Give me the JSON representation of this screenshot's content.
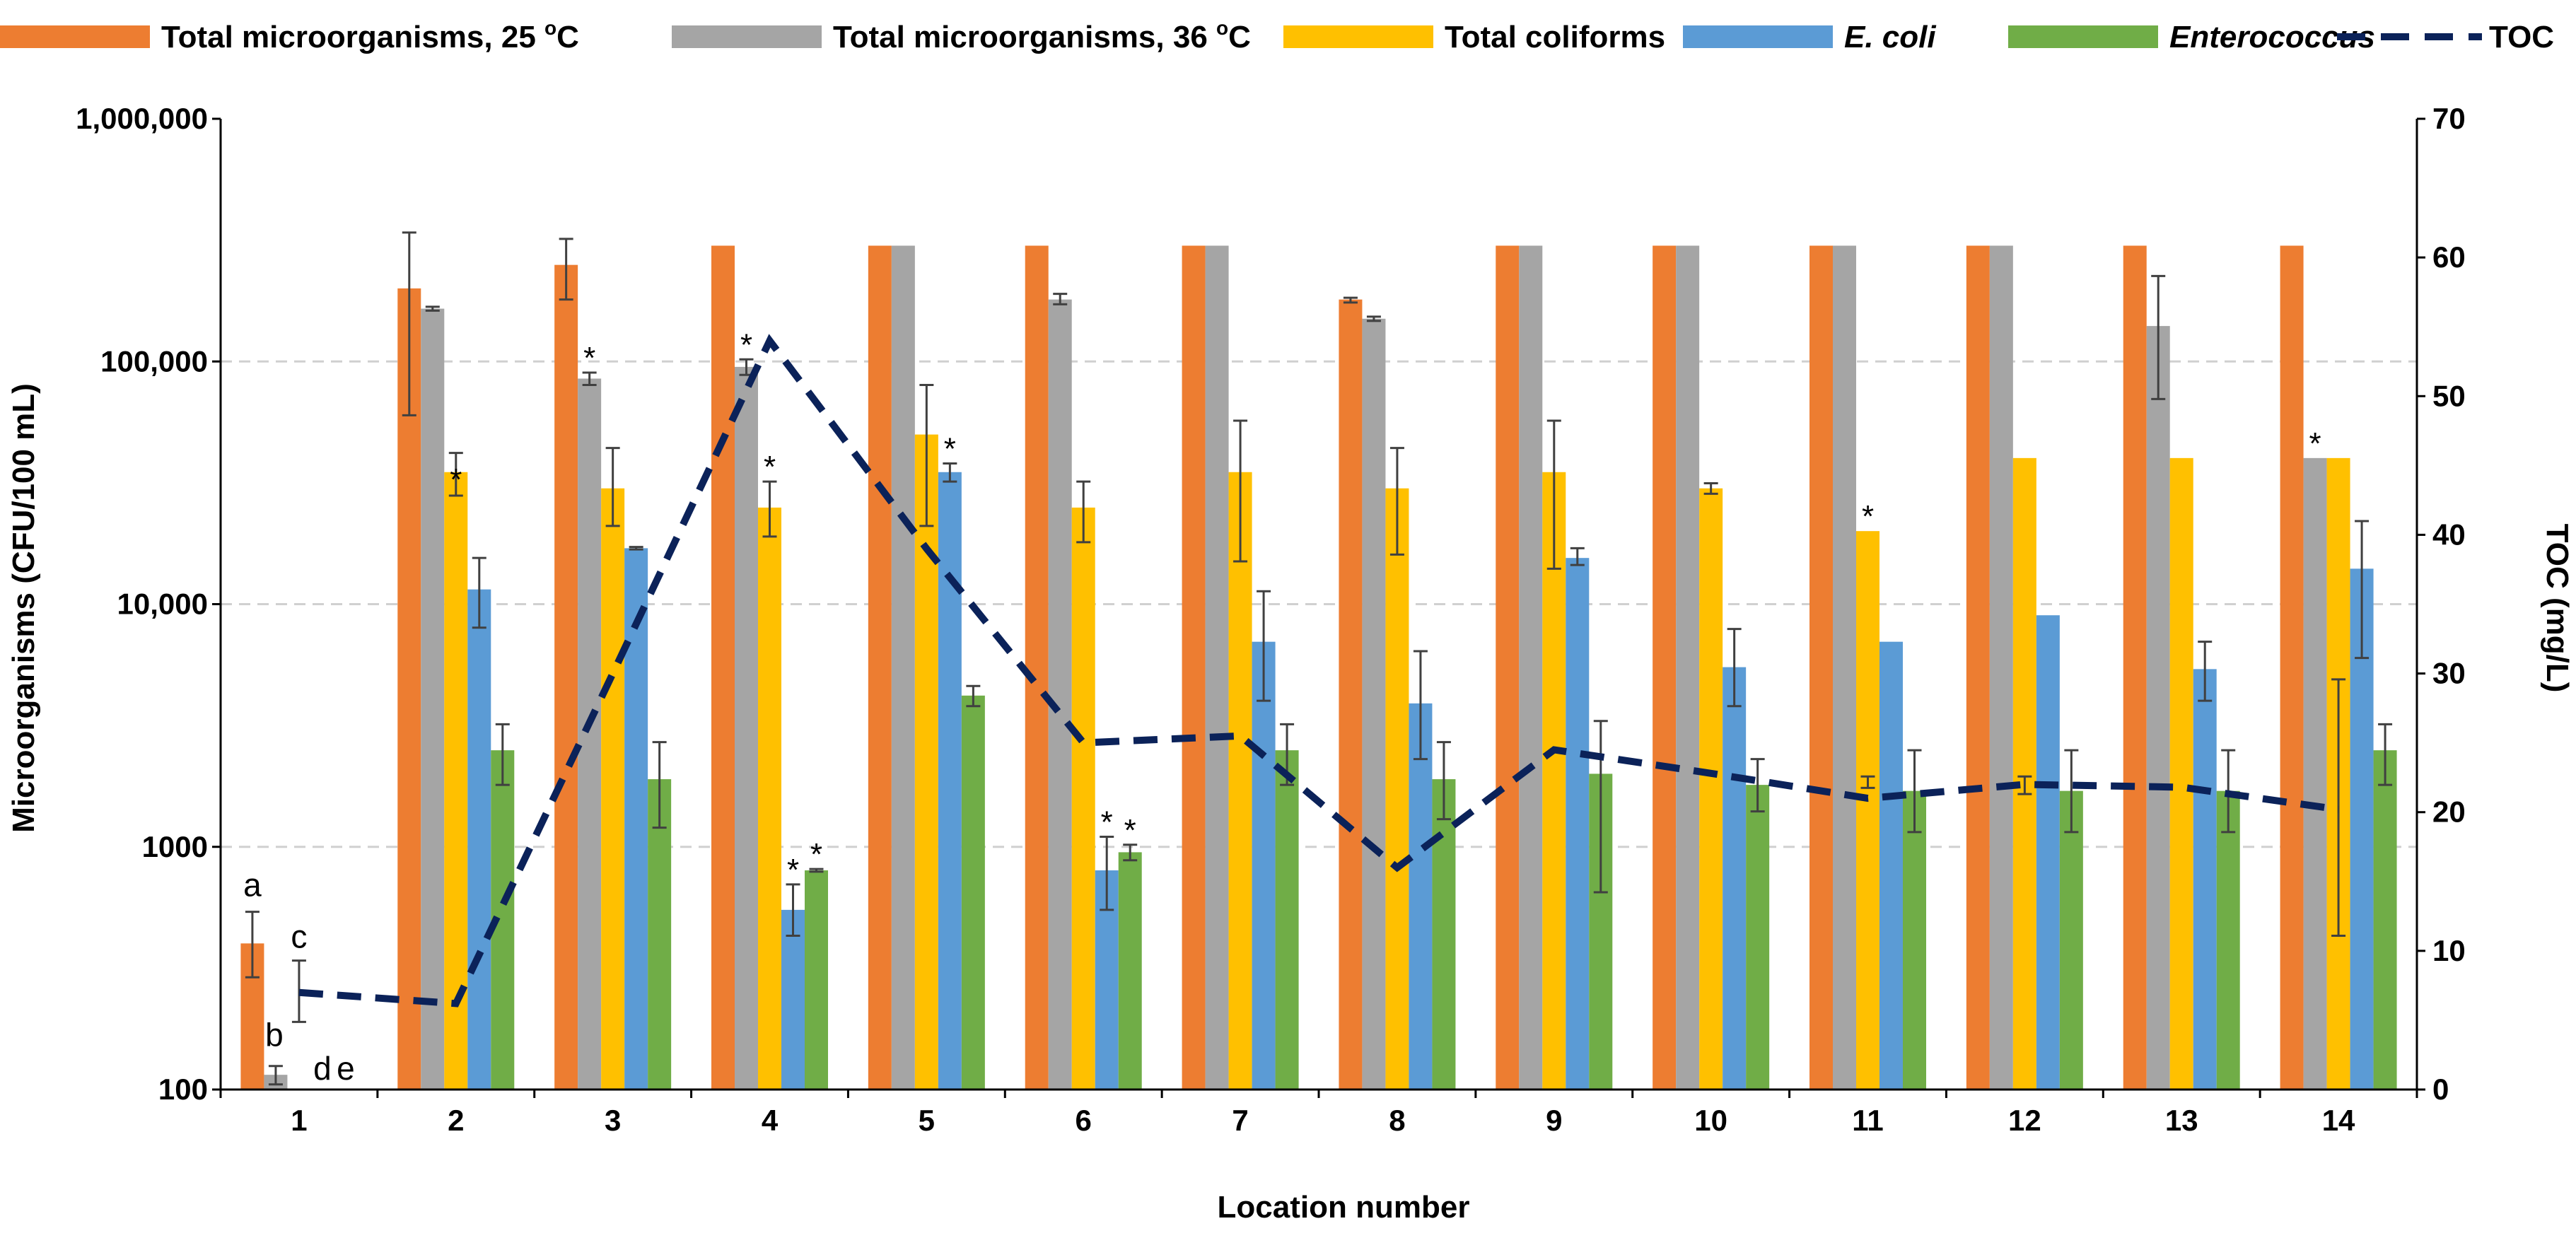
{
  "chart_data": {
    "type": "bar",
    "title": "",
    "xlabel": "Location number",
    "ylabel": "Microorganisms (CFU/100 mL)",
    "y2label": "TOC (mg/L)",
    "yscale": "log",
    "ylim": [
      100,
      1000000
    ],
    "y2lim": [
      0,
      70
    ],
    "y_ticks": [
      {
        "value": 100,
        "label": "100"
      },
      {
        "value": 1000,
        "label": "1000"
      },
      {
        "value": 10000,
        "label": "10,000"
      },
      {
        "value": 100000,
        "label": "100,000"
      },
      {
        "value": 1000000,
        "label": "1,000,000"
      }
    ],
    "y2_ticks": [
      {
        "value": 0,
        "label": "0"
      },
      {
        "value": 10,
        "label": "10"
      },
      {
        "value": 20,
        "label": "20"
      },
      {
        "value": 30,
        "label": "30"
      },
      {
        "value": 40,
        "label": "40"
      },
      {
        "value": 50,
        "label": "50"
      },
      {
        "value": 60,
        "label": "60"
      },
      {
        "value": 70,
        "label": "70"
      }
    ],
    "categories": [
      "1",
      "2",
      "3",
      "4",
      "5",
      "6",
      "7",
      "8",
      "9",
      "10",
      "11",
      "12",
      "13",
      "14"
    ],
    "series": [
      {
        "name": "Total microorganisms, 25 °C",
        "legend_main": "Total microorganisms, 25 ",
        "legend_sup": "o",
        "legend_tail": "C",
        "color": "#ED7D31",
        "values": [
          400,
          200000,
          250000,
          300000,
          300000,
          300000,
          300000,
          180000,
          300000,
          300000,
          300000,
          300000,
          300000,
          300000
        ],
        "err_low": [
          290,
          60000,
          180000,
          null,
          null,
          null,
          null,
          175000,
          null,
          null,
          null,
          null,
          null,
          null
        ],
        "err_high": [
          540,
          340000,
          320000,
          null,
          null,
          null,
          null,
          183000,
          null,
          null,
          null,
          null,
          null,
          null
        ]
      },
      {
        "name": "Total microorganisms, 36 °C",
        "legend_main": "Total microorganisms, 36 ",
        "legend_sup": "o",
        "legend_tail": "C",
        "color": "#A5A5A5",
        "values": [
          115,
          165000,
          85000,
          95000,
          300000,
          180000,
          300000,
          150000,
          300000,
          300000,
          300000,
          300000,
          140000,
          40000
        ],
        "err_low": [
          105,
          162000,
          80000,
          88000,
          null,
          172000,
          null,
          147000,
          null,
          null,
          null,
          null,
          70000,
          null
        ],
        "err_high": [
          125,
          168000,
          90000,
          102000,
          null,
          190000,
          null,
          153000,
          null,
          null,
          null,
          null,
          225000,
          null
        ]
      },
      {
        "name": "Total coliforms",
        "color": "#FFC000",
        "values": [
          null,
          35000,
          30000,
          25000,
          50000,
          25000,
          35000,
          30000,
          35000,
          30000,
          20000,
          40000,
          40000,
          40000
        ],
        "err_low": [
          null,
          28000,
          21000,
          19000,
          21000,
          18000,
          15000,
          16000,
          14000,
          28500,
          null,
          null,
          null,
          null
        ],
        "err_high": [
          null,
          42000,
          44000,
          32000,
          80000,
          32000,
          57000,
          44000,
          57000,
          31500,
          null,
          null,
          null,
          null
        ]
      },
      {
        "name": "E. coli",
        "color": "#5B9BD5",
        "italic": true,
        "values": [
          null,
          11500,
          17000,
          550,
          35000,
          800,
          7000,
          3900,
          15500,
          5500,
          7000,
          9000,
          5400,
          14000
        ],
        "err_low": [
          null,
          8000,
          16800,
          430,
          32000,
          550,
          4000,
          2300,
          14500,
          3800,
          null,
          null,
          4000,
          6000
        ],
        "err_high": [
          null,
          15500,
          17200,
          700,
          38000,
          1100,
          11300,
          6400,
          17000,
          7900,
          null,
          null,
          7000,
          22000
        ]
      },
      {
        "name": "Enterococcus",
        "color": "#70AD47",
        "italic": true,
        "values": [
          null,
          2500,
          1900,
          800,
          4200,
          950,
          2500,
          1900,
          2000,
          1800,
          1700,
          1700,
          1700,
          2500
        ],
        "err_low": [
          null,
          1800,
          1200,
          790,
          3800,
          880,
          1800,
          1300,
          650,
          1400,
          1150,
          1150,
          1150,
          1800
        ],
        "err_high": [
          null,
          3200,
          2700,
          810,
          4600,
          1020,
          3200,
          2700,
          3300,
          2300,
          2500,
          2500,
          2500,
          3200
        ]
      }
    ],
    "line_series": {
      "name": "TOC",
      "color": "#0B2259",
      "style": "dashed",
      "axis": "secondary",
      "values": [
        7,
        6.2,
        30,
        54,
        39,
        25,
        25.5,
        16,
        24.5,
        22.8,
        21,
        22,
        21.8,
        20.2
      ]
    },
    "extra_error_bars": [
      {
        "category": "11",
        "low": 1750,
        "high": 1950
      },
      {
        "category": "12",
        "low": 1650,
        "high": 1950
      },
      {
        "category": "14",
        "low": 430,
        "high": 4900
      }
    ],
    "annotations": [
      {
        "category": "1",
        "text": "a",
        "series": 0,
        "pos": "above-left"
      },
      {
        "category": "1",
        "text": "b",
        "series": 1,
        "pos": "above"
      },
      {
        "category": "1",
        "text": "c",
        "series": 2,
        "pos": "high"
      },
      {
        "category": "1",
        "text": "d",
        "series": 3,
        "pos": "bottom"
      },
      {
        "category": "1",
        "text": "e",
        "series": 4,
        "pos": "bottom"
      }
    ],
    "significance_marks": [
      {
        "category": "2",
        "series": 2,
        "text": "*",
        "at": "low"
      },
      {
        "category": "3",
        "series": 1,
        "text": "*"
      },
      {
        "category": "4",
        "series": 1,
        "text": "*"
      },
      {
        "category": "4",
        "series": 2,
        "text": "*"
      },
      {
        "category": "4",
        "series": 3,
        "text": "*"
      },
      {
        "category": "4",
        "series": 4,
        "text": "*"
      },
      {
        "category": "5",
        "series": 3,
        "text": "*"
      },
      {
        "category": "6",
        "series": 3,
        "text": "*"
      },
      {
        "category": "6",
        "series": 4,
        "text": "*"
      },
      {
        "category": "11",
        "series": 2,
        "text": "*"
      },
      {
        "category": "14",
        "series": 1,
        "text": "*"
      }
    ],
    "legend_position": "top",
    "grid": "major-y-dashed"
  }
}
